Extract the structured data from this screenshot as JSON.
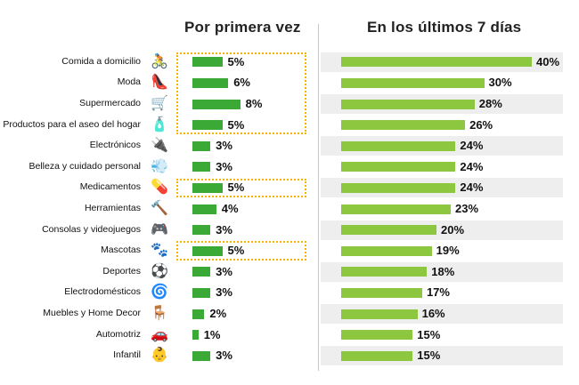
{
  "chart_data": {
    "type": "bar",
    "categories": [
      "Comida a domicilio",
      "Moda",
      "Supermercado",
      "Productos para el aseo del hogar",
      "Electrónicos",
      "Belleza y cuidado personal",
      "Medicamentos",
      "Herramientas",
      "Consolas y videojuegos",
      "Mascotas",
      "Deportes",
      "Electrodomésticos",
      "Muebles y Home Decor",
      "Automotriz",
      "Infantil"
    ],
    "series": [
      {
        "name": "Por primera vez",
        "values": [
          5,
          6,
          8,
          5,
          3,
          3,
          5,
          4,
          3,
          5,
          3,
          3,
          2,
          1,
          3
        ]
      },
      {
        "name": "En los últimos 7 días",
        "values": [
          40,
          30,
          28,
          26,
          24,
          24,
          24,
          23,
          20,
          19,
          18,
          17,
          16,
          15,
          15
        ]
      }
    ],
    "value_suffix": "%",
    "highlighted_first_series": [
      [
        "Comida a domicilio",
        "Moda",
        "Supermercado",
        "Productos para el aseo del hogar"
      ],
      [
        "Medicamentos"
      ],
      [
        "Mascotas"
      ]
    ],
    "icons": [
      "delivery-cyclist-icon",
      "high-heel-icon",
      "shopping-cart-icon",
      "cleaning-bottle-icon",
      "plug-icon",
      "hair-dryer-icon",
      "pills-icon",
      "hammer-icon",
      "gamepad-icon",
      "paw-icon",
      "soccer-ball-icon",
      "washing-machine-icon",
      "armchair-icon",
      "car-icon",
      "baby-bodysuit-icon"
    ],
    "colors": {
      "first_series": "#3aa935",
      "second_series": "#8dc63f",
      "highlight": "#f5b400",
      "row_stripe": "#eeeeee"
    }
  }
}
